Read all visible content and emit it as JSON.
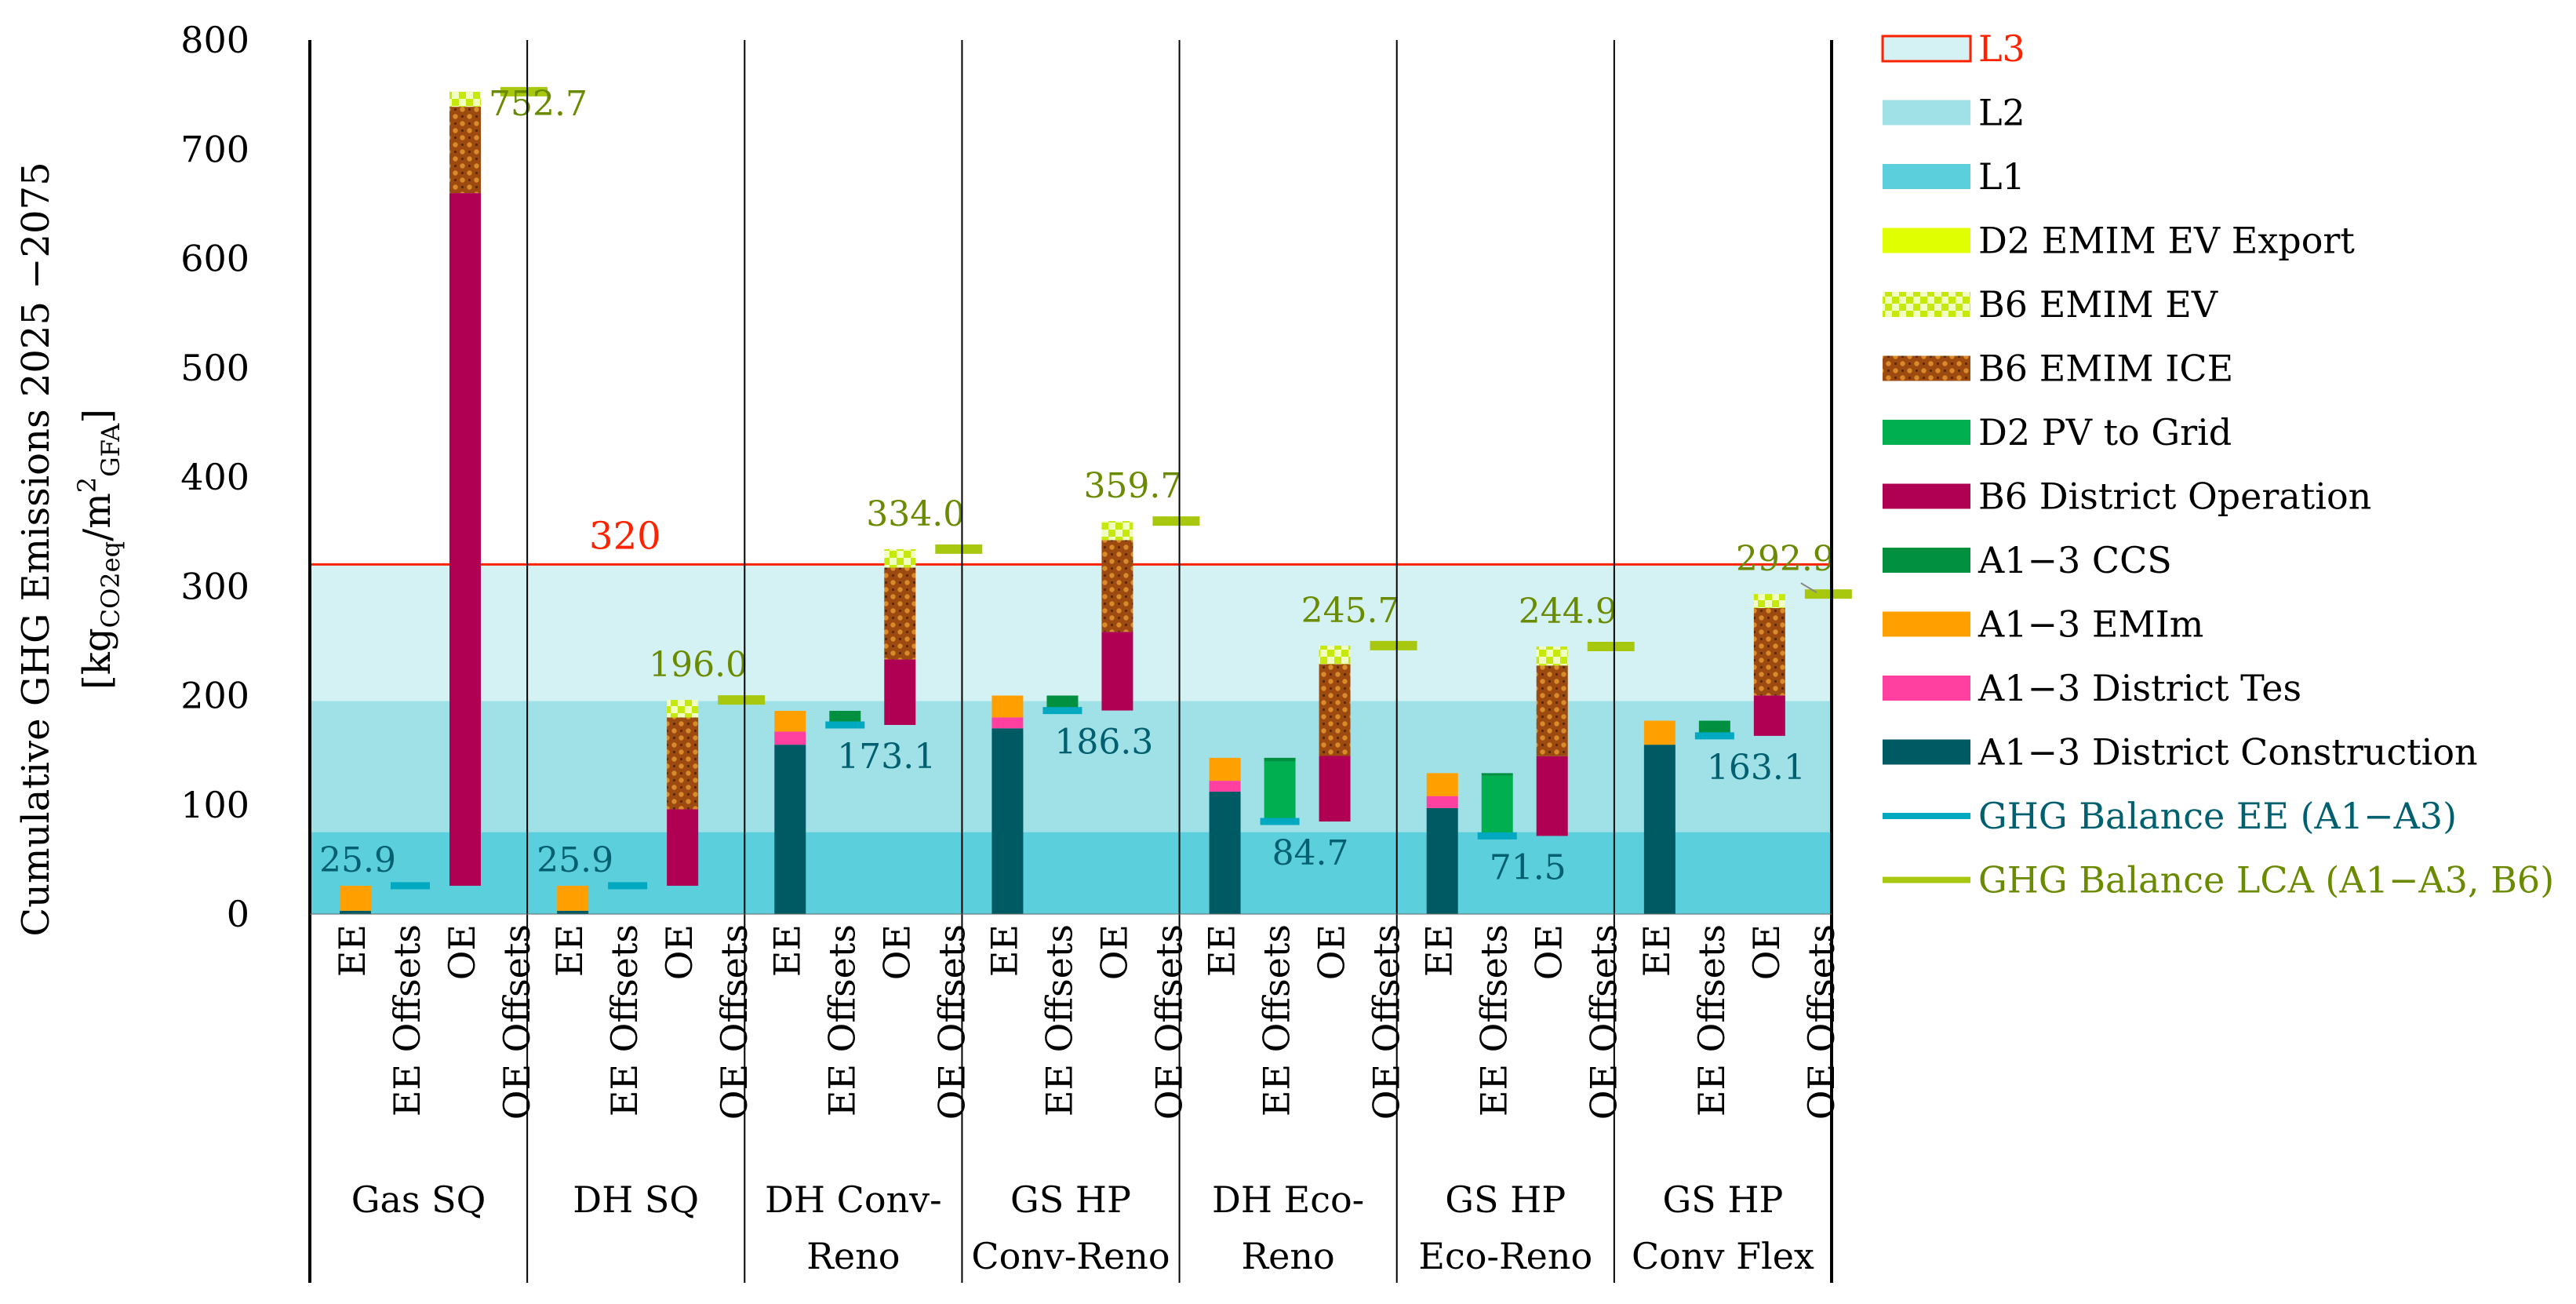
{
  "chart_data": {
    "type": "bar",
    "stacked": true,
    "ylabel_line1": "Cumulative GHG Emissions 2025 −2075",
    "ylabel_main": "[kg",
    "ylabel_sub1": "CO2eq",
    "ylabel_mid": "/m",
    "ylabel_sup": "2",
    "ylabel_sub2": "GFA",
    "ylabel_end": "]",
    "ylim": [
      0,
      800
    ],
    "yticks": [
      "0",
      "100",
      "200",
      "300",
      "400",
      "500",
      "600",
      "700",
      "800"
    ],
    "sub_categories": [
      "EE",
      "EE Offsets",
      "OE",
      "OE Offsets"
    ],
    "categories": [
      {
        "lines": [
          "Gas SQ"
        ]
      },
      {
        "lines": [
          "DH SQ"
        ]
      },
      {
        "lines": [
          "DH Conv-",
          "Reno"
        ]
      },
      {
        "lines": [
          "GS HP",
          "Conv-Reno"
        ]
      },
      {
        "lines": [
          "DH Eco-",
          "Reno"
        ]
      },
      {
        "lines": [
          "GS HP",
          "Eco-Reno"
        ]
      },
      {
        "lines": [
          "GS HP",
          "Conv Flex"
        ]
      }
    ],
    "levels": [
      {
        "name": "L1",
        "upper": 75,
        "color": "#5bcfdc"
      },
      {
        "name": "L2",
        "upper": 195,
        "color": "#a0e1e8"
      },
      {
        "name": "L3",
        "upper": 320,
        "color": "#d4f1f4"
      }
    ],
    "limit_line": {
      "value": 320,
      "label": "320",
      "color": "#ff2200"
    },
    "component_colors": {
      "A1-3 District Construction": "#005a64",
      "A1-3 District Tes": "#ff40a0",
      "A1-3 EMIm": "#ffa000",
      "A1-3 CCS": "#009040",
      "B6 District Operation": "#b00054",
      "D2 PV to Grid": "#00b050",
      "B6 EMIM ICE": "#9c4a10",
      "B6 EMIM EV": "#c6e80a",
      "D2 EMIM EV Export": "#e0ff00"
    },
    "scenarios": [
      {
        "name": "Gas SQ",
        "ee": [
          {
            "c": "A1-3 District Construction",
            "v": 3
          },
          {
            "c": "A1-3 EMIm",
            "v": 22.9
          }
        ],
        "ee_offsets": [],
        "oe_base": 25.9,
        "oe": [
          {
            "c": "B6 District Operation",
            "v": 634
          },
          {
            "c": "B6 EMIM ICE",
            "v": 79
          },
          {
            "c": "B6 EMIM EV",
            "v": 13.8
          }
        ],
        "oe_offsets": [],
        "ghg_balance_ee": 25.9,
        "ghg_balance_lca": 752.7,
        "ee_label": "25.9",
        "lca_label": "752.7"
      },
      {
        "name": "DH SQ",
        "ee": [
          {
            "c": "A1-3 District Construction",
            "v": 3
          },
          {
            "c": "A1-3 EMIm",
            "v": 22.9
          }
        ],
        "ee_offsets": [],
        "oe_base": 25.9,
        "oe": [
          {
            "c": "B6 District Operation",
            "v": 70
          },
          {
            "c": "B6 EMIM ICE",
            "v": 84
          },
          {
            "c": "B6 EMIM EV",
            "v": 16.1
          }
        ],
        "oe_offsets": [],
        "ghg_balance_ee": 25.9,
        "ghg_balance_lca": 196.0,
        "ee_label": "25.9",
        "lca_label": "196.0"
      },
      {
        "name": "DH Conv-Reno",
        "ee": [
          {
            "c": "A1-3 District Construction",
            "v": 155
          },
          {
            "c": "A1-3 District Tes",
            "v": 12
          },
          {
            "c": "A1-3 EMIm",
            "v": 19
          }
        ],
        "ee_offsets": [
          {
            "c": "A1-3 CCS",
            "v": 12.9
          }
        ],
        "oe_base": 173.1,
        "oe": [
          {
            "c": "B6 District Operation",
            "v": 60
          },
          {
            "c": "B6 EMIM ICE",
            "v": 84
          },
          {
            "c": "B6 EMIM EV",
            "v": 16.9
          }
        ],
        "oe_offsets": [],
        "ghg_balance_ee": 173.1,
        "ghg_balance_lca": 334.0,
        "ee_label": "173.1",
        "lca_label": "334.0"
      },
      {
        "name": "GS HP Conv-Reno",
        "ee": [
          {
            "c": "A1-3 District Construction",
            "v": 170
          },
          {
            "c": "A1-3 District Tes",
            "v": 10
          },
          {
            "c": "A1-3 EMIm",
            "v": 20
          }
        ],
        "ee_offsets": [
          {
            "c": "A1-3 CCS",
            "v": 13.7
          }
        ],
        "oe_base": 186.3,
        "oe": [
          {
            "c": "B6 District Operation",
            "v": 72
          },
          {
            "c": "B6 EMIM ICE",
            "v": 84
          },
          {
            "c": "B6 EMIM EV",
            "v": 17.4
          }
        ],
        "oe_offsets": [],
        "ghg_balance_ee": 186.3,
        "ghg_balance_lca": 359.7,
        "ee_label": "186.3",
        "lca_label": "359.7"
      },
      {
        "name": "DH Eco-Reno",
        "ee": [
          {
            "c": "A1-3 District Construction",
            "v": 112
          },
          {
            "c": "A1-3 District Tes",
            "v": 10
          },
          {
            "c": "A1-3 EMIm",
            "v": 21
          }
        ],
        "ee_offsets": [
          {
            "c": "A1-3 CCS",
            "v": 3.3
          },
          {
            "c": "D2 PV to Grid",
            "v": 55
          }
        ],
        "oe_base": 84.7,
        "oe": [
          {
            "c": "B6 District Operation",
            "v": 60
          },
          {
            "c": "B6 EMIM ICE",
            "v": 84
          },
          {
            "c": "B6 EMIM EV",
            "v": 17
          }
        ],
        "oe_offsets": [],
        "ghg_balance_ee": 84.7,
        "ghg_balance_lca": 245.7,
        "ee_label": "84.7",
        "lca_label": "245.7"
      },
      {
        "name": "GS HP Eco-Reno",
        "ee": [
          {
            "c": "A1-3 District Construction",
            "v": 97
          },
          {
            "c": "A1-3 District Tes",
            "v": 11
          },
          {
            "c": "A1-3 EMIm",
            "v": 21
          }
        ],
        "ee_offsets": [
          {
            "c": "A1-3 CCS",
            "v": 2.5
          },
          {
            "c": "D2 PV to Grid",
            "v": 55
          }
        ],
        "oe_base": 71.5,
        "oe": [
          {
            "c": "B6 District Operation",
            "v": 73
          },
          {
            "c": "B6 EMIM ICE",
            "v": 83
          },
          {
            "c": "B6 EMIM EV",
            "v": 17.4
          }
        ],
        "oe_offsets": [],
        "ghg_balance_ee": 71.5,
        "ghg_balance_lca": 244.9,
        "ee_label": "71.5",
        "lca_label": "244.9"
      },
      {
        "name": "GS HP Conv Flex",
        "ee": [
          {
            "c": "A1-3 District Construction",
            "v": 155
          },
          {
            "c": "A1-3 EMIm",
            "v": 22
          }
        ],
        "ee_offsets": [
          {
            "c": "A1-3 CCS",
            "v": 13.9
          }
        ],
        "oe_base": 163.1,
        "oe": [
          {
            "c": "B6 District Operation",
            "v": 37
          },
          {
            "c": "B6 EMIM ICE",
            "v": 80
          },
          {
            "c": "B6 EMIM EV",
            "v": 12.8
          }
        ],
        "oe_offsets": [],
        "ghg_balance_ee": 163.1,
        "ghg_balance_lca": 292.9,
        "ee_label": "163.1",
        "lca_label": "292.9"
      }
    ],
    "legend": [
      {
        "label": "L3",
        "kind": "box-outline",
        "color": "#d4f1f4",
        "edge": "#ff2200",
        "text_color": "#ff2200"
      },
      {
        "label": "L2",
        "kind": "box",
        "color": "#a0e1e8"
      },
      {
        "label": "L1",
        "kind": "box",
        "color": "#5bcfdc"
      },
      {
        "label": "D2 EMIM EV Export",
        "kind": "box",
        "color": "#e0ff00"
      },
      {
        "label": "B6 EMIM EV",
        "kind": "pattern-ev",
        "color": "#c6e80a"
      },
      {
        "label": "B6 EMIM ICE",
        "kind": "pattern-ice",
        "color": "#9c4a10"
      },
      {
        "label": "D2 PV to Grid",
        "kind": "box",
        "color": "#00b050"
      },
      {
        "label": "B6 District Operation",
        "kind": "box",
        "color": "#b00054"
      },
      {
        "label": "A1−3 CCS",
        "kind": "box",
        "color": "#009040"
      },
      {
        "label": "A1−3 EMIm",
        "kind": "box",
        "color": "#ffa000"
      },
      {
        "label": "A1−3 District Tes",
        "kind": "box",
        "color": "#ff40a0"
      },
      {
        "label": "A1−3 District Construction",
        "kind": "box",
        "color": "#005a64"
      },
      {
        "label": "GHG Balance EE (A1−A3)",
        "kind": "line",
        "color": "#00a8c0",
        "text_color": "#006070"
      },
      {
        "label": "GHG Balance LCA (A1−A3, B6)",
        "kind": "line",
        "color": "#a8c810",
        "text_color": "#6a8a00"
      }
    ],
    "colors": {
      "ee_line": "#00a8c0",
      "lca_line": "#a8c810",
      "ee_label": "#006070",
      "lca_label": "#6a8a00",
      "axis": "#000000",
      "grid": "#000000"
    }
  }
}
